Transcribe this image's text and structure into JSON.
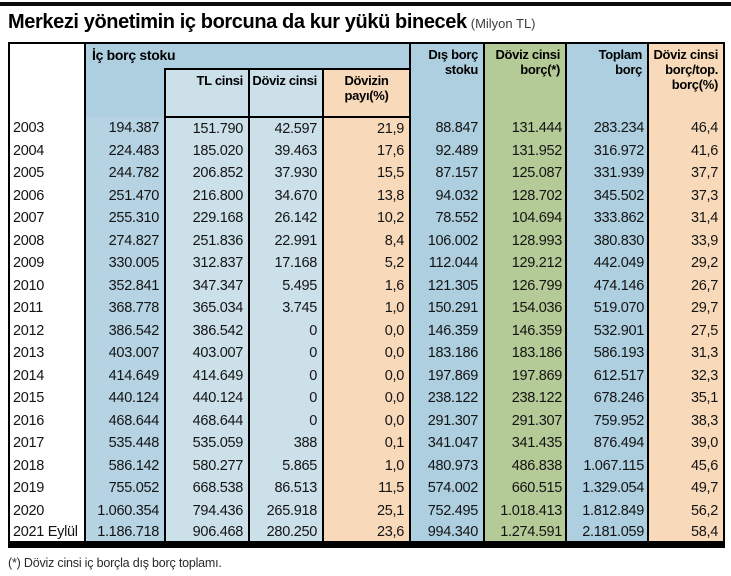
{
  "title": {
    "main": "Merkezi yönetimin iç borcuna da kur yükü binecek",
    "unit": "(Milyon TL)"
  },
  "header": {
    "ic_borc_group": "İç borç stoku",
    "tl_cinsi": "TL cinsi",
    "doviz_cinsi": "Döviz cinsi",
    "dovizin_payi": "Dövizin\npayı(%)",
    "dis_borc": "Dış borç\nstoku",
    "doviz_cinsi_borc": "Döviz cinsi\nborç(*)",
    "toplam_borc": "Toplam\nborç",
    "doviz_ratio": "Döviz cinsi\nborç/top.\nborç(%)"
  },
  "footnote": "(*) Döviz cinsi iç borçla dış borç toplamı.",
  "colors": {
    "blue": "#ADCFE0",
    "data_blue": "#B6D3E3",
    "light_blue": "#CCE0EA",
    "green": "#B5CB97",
    "peach": "#F8DABA",
    "rule_black": "#0d0d0d"
  },
  "chart_data": {
    "type": "table",
    "title": "Merkezi yönetimin iç borcuna da kur yükü binecek (Milyon TL)",
    "columns": [
      "",
      "İç borç stoku",
      "TL cinsi",
      "Döviz cinsi",
      "Dövizin payı(%)",
      "Dış borç stoku",
      "Döviz cinsi borç(*)",
      "Toplam borç",
      "Döviz cinsi borç/top. borç(%)"
    ],
    "rows": [
      [
        "2003",
        "194.387",
        "151.790",
        "42.597",
        "21,9",
        "88.847",
        "131.444",
        "283.234",
        "46,4"
      ],
      [
        "2004",
        "224.483",
        "185.020",
        "39.463",
        "17,6",
        "92.489",
        "131.952",
        "316.972",
        "41,6"
      ],
      [
        "2005",
        "244.782",
        "206.852",
        "37.930",
        "15,5",
        "87.157",
        "125.087",
        "331.939",
        "37,7"
      ],
      [
        "2006",
        "251.470",
        "216.800",
        "34.670",
        "13,8",
        "94.032",
        "128.702",
        "345.502",
        "37,3"
      ],
      [
        "2007",
        "255.310",
        "229.168",
        "26.142",
        "10,2",
        "78.552",
        "104.694",
        "333.862",
        "31,4"
      ],
      [
        "2008",
        "274.827",
        "251.836",
        "22.991",
        "8,4",
        "106.002",
        "128.993",
        "380.830",
        "33,9"
      ],
      [
        "2009",
        "330.005",
        "312.837",
        "17.168",
        "5,2",
        "112.044",
        "129.212",
        "442.049",
        "29,2"
      ],
      [
        "2010",
        "352.841",
        "347.347",
        "5.495",
        "1,6",
        "121.305",
        "126.799",
        "474.146",
        "26,7"
      ],
      [
        "2011",
        "368.778",
        "365.034",
        "3.745",
        "1,0",
        "150.291",
        "154.036",
        "519.070",
        "29,7"
      ],
      [
        "2012",
        "386.542",
        "386.542",
        "0",
        "0,0",
        "146.359",
        "146.359",
        "532.901",
        "27,5"
      ],
      [
        "2013",
        "403.007",
        "403.007",
        "0",
        "0,0",
        "183.186",
        "183.186",
        "586.193",
        "31,3"
      ],
      [
        "2014",
        "414.649",
        "414.649",
        "0",
        "0,0",
        "197.869",
        "197.869",
        "612.517",
        "32,3"
      ],
      [
        "2015",
        "440.124",
        "440.124",
        "0",
        "0,0",
        "238.122",
        "238.122",
        "678.246",
        "35,1"
      ],
      [
        "2016",
        "468.644",
        "468.644",
        "0",
        "0,0",
        "291.307",
        "291.307",
        "759.952",
        "38,3"
      ],
      [
        "2017",
        "535.448",
        "535.059",
        "388",
        "0,1",
        "341.047",
        "341.435",
        "876.494",
        "39,0"
      ],
      [
        "2018",
        "586.142",
        "580.277",
        "5.865",
        "1,0",
        "480.973",
        "486.838",
        "1.067.115",
        "45,6"
      ],
      [
        "2019",
        "755.052",
        "668.538",
        "86.513",
        "11,5",
        "574.002",
        "660.515",
        "1.329.054",
        "49,7"
      ],
      [
        "2020",
        "1.060.354",
        "794.436",
        "265.918",
        "25,1",
        "752.495",
        "1.018.413",
        "1.812.849",
        "56,2"
      ],
      [
        "2021 Eylül",
        "1.186.718",
        "906.468",
        "280.250",
        "23,6",
        "994.340",
        "1.274.591",
        "2.181.059",
        "58,4"
      ]
    ]
  }
}
